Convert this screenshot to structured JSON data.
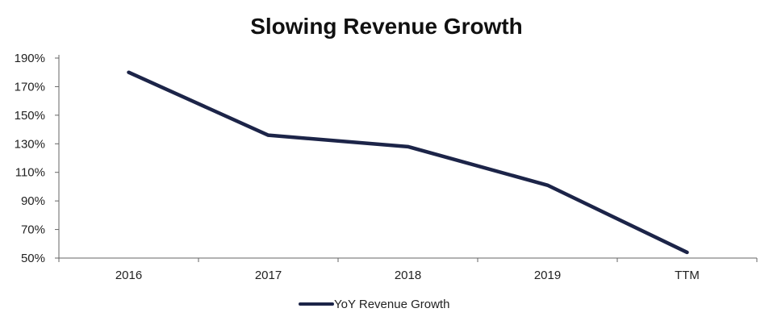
{
  "colors": {
    "series": "#1c2448",
    "axis": "#666666",
    "text": "#222222"
  },
  "chart_data": {
    "type": "line",
    "title": "Slowing Revenue Growth",
    "xlabel": "",
    "ylabel": "",
    "categories": [
      "2016",
      "2017",
      "2018",
      "2019",
      "TTM"
    ],
    "series": [
      {
        "name": "YoY Revenue Growth",
        "values": [
          180,
          136,
          128,
          101,
          54
        ]
      }
    ],
    "ylim": [
      50,
      190
    ],
    "yticks": [
      50,
      70,
      90,
      110,
      130,
      150,
      170,
      190
    ],
    "ytick_labels": [
      "50%",
      "70%",
      "90%",
      "110%",
      "130%",
      "150%",
      "170%",
      "190%"
    ],
    "grid": false,
    "legend": "bottom-center"
  }
}
